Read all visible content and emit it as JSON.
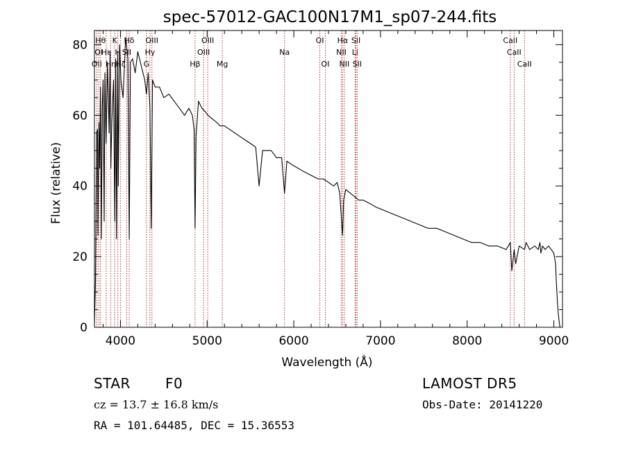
{
  "chart_data": {
    "type": "line",
    "title": "spec-57012-GAC100N17M1_sp07-244.fits",
    "xlabel": "Wavelength (Å)",
    "ylabel": "Flux (relative)",
    "xlim": [
      3700,
      9100
    ],
    "ylim": [
      0,
      84
    ],
    "x_ticks": [
      4000,
      5000,
      6000,
      7000,
      8000,
      9000
    ],
    "x_tick_labels": [
      "4000",
      "5000",
      "6000",
      "7000",
      "8000",
      "9000"
    ],
    "y_ticks": [
      0,
      20,
      40,
      60,
      80
    ],
    "y_tick_labels": [
      "0",
      "20",
      "40",
      "60",
      "80"
    ],
    "grid": false,
    "series_color": "#000000",
    "line_marker_color": "#b03030",
    "series": [
      {
        "x": [
          3700,
          3712,
          3725,
          3735,
          3740,
          3752,
          3760,
          3770,
          3780,
          3790,
          3800,
          3812,
          3820,
          3835,
          3850,
          3870,
          3880,
          3889,
          3900,
          3920,
          3935,
          3945,
          3955,
          3968,
          3975,
          3990,
          4005,
          4030,
          4060,
          4085,
          4101,
          4115,
          4140,
          4170,
          4200,
          4240,
          4280,
          4300,
          4320,
          4340,
          4355,
          4370,
          4400,
          4450,
          4500,
          4560,
          4620,
          4680,
          4740,
          4790,
          4830,
          4850,
          4861,
          4872,
          4900,
          4940,
          4980,
          5010,
          5060,
          5110,
          5150,
          5200,
          5260,
          5320,
          5380,
          5440,
          5500,
          5560,
          5600,
          5640,
          5690,
          5740,
          5800,
          5860,
          5893,
          5920,
          5980,
          6050,
          6120,
          6200,
          6280,
          6340,
          6400,
          6460,
          6500,
          6530,
          6563,
          6575,
          6600,
          6650,
          6700,
          6750,
          6800,
          6880,
          6950,
          7050,
          7150,
          7250,
          7350,
          7450,
          7550,
          7650,
          7750,
          7850,
          7950,
          8050,
          8150,
          8250,
          8350,
          8450,
          8498,
          8515,
          8542,
          8560,
          8600,
          8662,
          8680,
          8720,
          8780,
          8820,
          8840,
          8850,
          8870,
          8900,
          8940,
          8970,
          9000,
          9020,
          9030,
          9040,
          9050,
          9060,
          9070
        ],
        "y": [
          1,
          13,
          55,
          56,
          26,
          58,
          45,
          68,
          25,
          62,
          70,
          30,
          72,
          52,
          75,
          55,
          78,
          45,
          58,
          70,
          30,
          76,
          25,
          78,
          40,
          80,
          70,
          65,
          82,
          76,
          25,
          75,
          76,
          72,
          78,
          74,
          70,
          66,
          72,
          62,
          28,
          70,
          68,
          68,
          65,
          66,
          64,
          62,
          60,
          62,
          60,
          56,
          28,
          54,
          64,
          62,
          61,
          60,
          59,
          58,
          57,
          57,
          56,
          55,
          54,
          53,
          52,
          51,
          40,
          50,
          50,
          50,
          48,
          48,
          38,
          47,
          46,
          45,
          44,
          43,
          42,
          42,
          41,
          40,
          41,
          38,
          26,
          36,
          39,
          38,
          37,
          36,
          36,
          35,
          34,
          33,
          32,
          31,
          30,
          29,
          28,
          28,
          27,
          26,
          25,
          24,
          24,
          23,
          23,
          22,
          24,
          16,
          22,
          18,
          23,
          22,
          24,
          22,
          23,
          22,
          24,
          21,
          23,
          22,
          23,
          22,
          21,
          18,
          12,
          8,
          4,
          2,
          0
        ]
      }
    ],
    "spectral_lines": [
      {
        "wave": 3727,
        "label": "OII",
        "row": 3
      },
      {
        "wave": 3750,
        "label": "OI",
        "row": 2
      },
      {
        "wave": 3770,
        "label": "Hθ",
        "row": 1
      },
      {
        "wave": 3835,
        "label": "Hε",
        "row": 2
      },
      {
        "wave": 3889,
        "label": "Hη",
        "row": 3
      },
      {
        "wave": 3934,
        "label": "K",
        "row": 1
      },
      {
        "wave": 3970,
        "label": "H",
        "row": 2
      },
      {
        "wave": 4002,
        "label": "Hζ",
        "row": 3
      },
      {
        "wave": 4072,
        "label": "SII",
        "row": 2
      },
      {
        "wave": 4101,
        "label": "Hδ",
        "row": 1
      },
      {
        "wave": 4300,
        "label": "G",
        "row": 3
      },
      {
        "wave": 4340,
        "label": "Hγ",
        "row": 2
      },
      {
        "wave": 4363,
        "label": "OIII",
        "row": 1
      },
      {
        "wave": 4861,
        "label": "Hβ",
        "row": 3
      },
      {
        "wave": 4959,
        "label": "OIII",
        "row": 2
      },
      {
        "wave": 5007,
        "label": "OIII",
        "row": 1
      },
      {
        "wave": 5175,
        "label": "Mg",
        "row": 3
      },
      {
        "wave": 5893,
        "label": "Na",
        "row": 2
      },
      {
        "wave": 6300,
        "label": "OI",
        "row": 1
      },
      {
        "wave": 6364,
        "label": "OI",
        "row": 3
      },
      {
        "wave": 6548,
        "label": "NII",
        "row": 2
      },
      {
        "wave": 6563,
        "label": "Hα",
        "row": 1
      },
      {
        "wave": 6583,
        "label": "NII",
        "row": 3
      },
      {
        "wave": 6707,
        "label": "Li",
        "row": 2
      },
      {
        "wave": 6717,
        "label": "SII",
        "row": 1
      },
      {
        "wave": 6731,
        "label": "SII",
        "row": 3
      },
      {
        "wave": 8498,
        "label": "CaII",
        "row": 1
      },
      {
        "wave": 8542,
        "label": "CaII",
        "row": 2
      },
      {
        "wave": 8662,
        "label": "CaII",
        "row": 3
      }
    ]
  },
  "info": {
    "object_class": "STAR",
    "subclass": "F0",
    "survey": "LAMOST DR5",
    "cz": "cz = 13.7 ± 16.8 km/s",
    "obs_date": "Obs-Date: 20141220",
    "coords": "RA = 101.64485, DEC =  15.36553"
  }
}
